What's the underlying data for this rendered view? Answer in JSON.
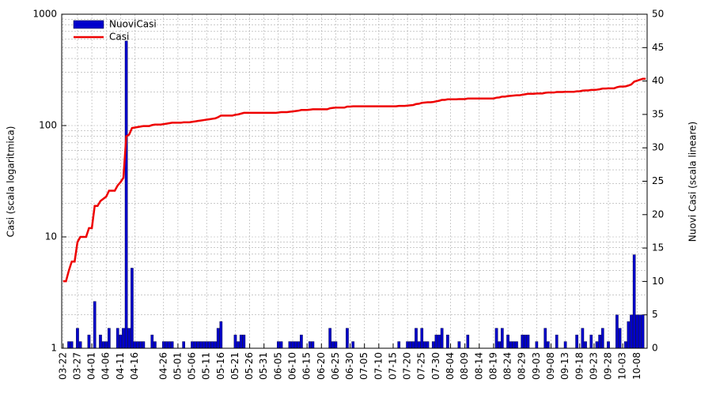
{
  "chart_data": {
    "type": "combo",
    "ylabel": "Casi (scala logaritmica)",
    "y2label": "Nuovi Casi (scala lineare)",
    "ylog": true,
    "ylim": [
      1,
      1000
    ],
    "yticks": [
      1,
      10,
      100,
      1000
    ],
    "y2lim": [
      0,
      50
    ],
    "y2ticks": [
      0,
      5,
      10,
      15,
      20,
      25,
      30,
      35,
      40,
      45,
      50
    ],
    "grid": true,
    "minor_grid": true,
    "legend": "upper left",
    "categories": [
      "03-22",
      null,
      null,
      null,
      null,
      "03-27",
      null,
      null,
      null,
      null,
      "04-01",
      null,
      null,
      null,
      null,
      "04-06",
      null,
      null,
      null,
      null,
      "04-11",
      null,
      null,
      null,
      null,
      "04-16",
      null,
      null,
      null,
      null,
      null,
      null,
      null,
      null,
      null,
      "04-26",
      null,
      null,
      null,
      null,
      "05-01",
      null,
      null,
      null,
      null,
      "05-06",
      null,
      null,
      null,
      null,
      "05-11",
      null,
      null,
      null,
      null,
      "05-16",
      null,
      null,
      null,
      null,
      "05-21",
      null,
      null,
      null,
      null,
      "05-26",
      null,
      null,
      null,
      null,
      "05-31",
      null,
      null,
      null,
      null,
      "06-05",
      null,
      null,
      null,
      null,
      "06-10",
      null,
      null,
      null,
      null,
      "06-15",
      null,
      null,
      null,
      null,
      "06-20",
      null,
      null,
      null,
      null,
      "06-25",
      null,
      null,
      null,
      null,
      "06-30",
      null,
      null,
      null,
      null,
      "07-05",
      null,
      null,
      null,
      null,
      "07-10",
      null,
      null,
      null,
      null,
      "07-15",
      null,
      null,
      null,
      null,
      "07-20",
      null,
      null,
      null,
      null,
      "07-25",
      null,
      null,
      null,
      null,
      "07-30",
      null,
      null,
      null,
      null,
      "08-04",
      null,
      null,
      null,
      null,
      "08-09",
      null,
      null,
      null,
      null,
      "08-14",
      null,
      null,
      null,
      null,
      "08-19",
      null,
      null,
      null,
      null,
      "08-24",
      null,
      null,
      null,
      null,
      "08-29",
      null,
      null,
      null,
      null,
      "09-03",
      null,
      null,
      null,
      null,
      "09-08",
      null,
      null,
      null,
      null,
      "09-13",
      null,
      null,
      null,
      null,
      "09-18",
      null,
      null,
      null,
      null,
      "09-23",
      null,
      null,
      null,
      null,
      "09-28",
      null,
      null,
      null,
      null,
      "10-03",
      null,
      null,
      null,
      null,
      "10-08",
      null,
      null,
      null
    ],
    "series": [
      {
        "name": "NuoviCasi",
        "type": "bar",
        "axis": "y2",
        "color": "#0000cc",
        "values": [
          0,
          0,
          1,
          1,
          0,
          3,
          1,
          0,
          0,
          2,
          0,
          7,
          0,
          2,
          1,
          1,
          3,
          0,
          0,
          3,
          2,
          3,
          46,
          3,
          12,
          1,
          1,
          1,
          1,
          0,
          0,
          2,
          1,
          0,
          0,
          1,
          1,
          1,
          1,
          0,
          0,
          0,
          1,
          0,
          0,
          1,
          1,
          1,
          1,
          1,
          1,
          1,
          1,
          1,
          3,
          4,
          0,
          0,
          0,
          0,
          2,
          1,
          2,
          2,
          0,
          0,
          0,
          0,
          0,
          0,
          0,
          0,
          0,
          0,
          0,
          1,
          1,
          0,
          0,
          1,
          1,
          1,
          1,
          2,
          0,
          0,
          1,
          1,
          0,
          0,
          0,
          0,
          0,
          3,
          1,
          1,
          0,
          0,
          0,
          3,
          0,
          1,
          0,
          0,
          0,
          0,
          0,
          0,
          0,
          0,
          0,
          0,
          0,
          0,
          0,
          0,
          0,
          1,
          0,
          0,
          1,
          1,
          1,
          3,
          1,
          3,
          1,
          1,
          0,
          1,
          2,
          2,
          3,
          0,
          2,
          0,
          0,
          0,
          1,
          0,
          0,
          2,
          0,
          0,
          0,
          0,
          0,
          0,
          0,
          0,
          0,
          3,
          1,
          3,
          0,
          2,
          1,
          1,
          1,
          0,
          2,
          2,
          2,
          0,
          0,
          1,
          0,
          0,
          3,
          1,
          0,
          0,
          2,
          0,
          0,
          1,
          0,
          0,
          0,
          2,
          0,
          3,
          1,
          0,
          2,
          0,
          1,
          2,
          3,
          0,
          1,
          0,
          0,
          5,
          3,
          0,
          1,
          4,
          5,
          14,
          5,
          5,
          5,
          0
        ]
      },
      {
        "name": "Casi",
        "type": "line",
        "axis": "y",
        "color": "#ee0000",
        "values": [
          4,
          4,
          5,
          6,
          6,
          9,
          10,
          10,
          10,
          12,
          12,
          19,
          19,
          21,
          22,
          23,
          26,
          26,
          26,
          29,
          31,
          34,
          80,
          83,
          95,
          96,
          97,
          98,
          99,
          99,
          99,
          101,
          102,
          102,
          102,
          103,
          104,
          105,
          106,
          106,
          106,
          106,
          107,
          107,
          107,
          108,
          109,
          110,
          111,
          112,
          113,
          114,
          115,
          116,
          119,
          123,
          123,
          123,
          123,
          123,
          125,
          126,
          128,
          130,
          130,
          130,
          130,
          130,
          130,
          130,
          130,
          130,
          130,
          130,
          130,
          131,
          132,
          132,
          132,
          133,
          134,
          135,
          136,
          138,
          138,
          138,
          139,
          140,
          140,
          140,
          140,
          140,
          140,
          143,
          144,
          145,
          145,
          145,
          145,
          148,
          148,
          149,
          149,
          149,
          149,
          149,
          149,
          149,
          149,
          149,
          149,
          149,
          149,
          149,
          149,
          149,
          149,
          150,
          150,
          150,
          151,
          152,
          153,
          156,
          157,
          160,
          161,
          162,
          162,
          163,
          165,
          167,
          170,
          170,
          172,
          172,
          172,
          172,
          173,
          173,
          173,
          175,
          175,
          175,
          175,
          175,
          175,
          175,
          175,
          175,
          175,
          178,
          179,
          182,
          182,
          184,
          185,
          186,
          187,
          187,
          189,
          191,
          193,
          193,
          193,
          194,
          194,
          194,
          197,
          198,
          198,
          198,
          200,
          200,
          200,
          201,
          201,
          201,
          201,
          203,
          203,
          206,
          207,
          207,
          209,
          209,
          210,
          212,
          215,
          215,
          216,
          216,
          216,
          221,
          224,
          224,
          225,
          229,
          234,
          248,
          253,
          258,
          263,
          263
        ]
      }
    ]
  }
}
